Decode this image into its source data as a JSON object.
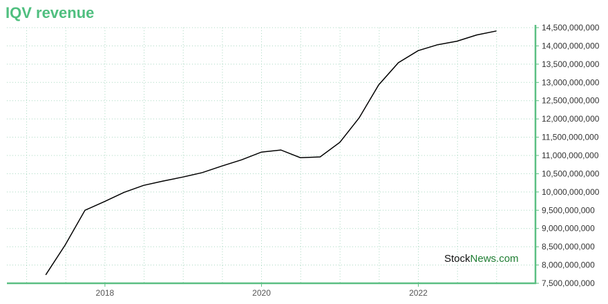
{
  "chart_data": {
    "type": "line",
    "title": "IQV revenue",
    "xlabel": "",
    "ylabel": "",
    "x_ticks": [
      "2018",
      "2020",
      "2022"
    ],
    "y_ticks": [
      "14,500,000,000",
      "14,000,000,000",
      "13,500,000,000",
      "13,000,000,000",
      "12,500,000,000",
      "12,000,000,000",
      "11,500,000,000",
      "11,000,000,000",
      "10,500,000,000",
      "10,000,000,000",
      "9,500,000,000",
      "9,000,000,000",
      "8,500,000,000",
      "8,000,000,000",
      "7,500,000,000"
    ],
    "ylim": [
      7500000000,
      14500000000
    ],
    "xlim": [
      "2016-10-01",
      "2023-07-01"
    ],
    "grid": true,
    "legend": "none",
    "colors": {
      "line": "#000000",
      "axis": "#5bbf82",
      "grid": "#a8d8c0",
      "title": "#4fbf7f"
    },
    "series": [
      {
        "points": [
          {
            "x": "2017-03-31",
            "y": 7730000000
          },
          {
            "x": "2017-06-30",
            "y": 8550000000
          },
          {
            "x": "2017-09-30",
            "y": 9500000000
          },
          {
            "x": "2017-12-31",
            "y": 9740000000
          },
          {
            "x": "2018-03-31",
            "y": 9990000000
          },
          {
            "x": "2018-06-30",
            "y": 10180000000
          },
          {
            "x": "2018-09-30",
            "y": 10300000000
          },
          {
            "x": "2018-12-31",
            "y": 10410000000
          },
          {
            "x": "2019-03-31",
            "y": 10530000000
          },
          {
            "x": "2019-06-30",
            "y": 10710000000
          },
          {
            "x": "2019-09-30",
            "y": 10880000000
          },
          {
            "x": "2019-12-31",
            "y": 11090000000
          },
          {
            "x": "2020-03-31",
            "y": 11150000000
          },
          {
            "x": "2020-06-30",
            "y": 10940000000
          },
          {
            "x": "2020-09-30",
            "y": 10960000000
          },
          {
            "x": "2020-12-31",
            "y": 11360000000
          },
          {
            "x": "2021-03-31",
            "y": 12030000000
          },
          {
            "x": "2021-06-30",
            "y": 12930000000
          },
          {
            "x": "2021-09-30",
            "y": 13540000000
          },
          {
            "x": "2021-12-31",
            "y": 13870000000
          },
          {
            "x": "2022-03-31",
            "y": 14030000000
          },
          {
            "x": "2022-06-30",
            "y": 14130000000
          },
          {
            "x": "2022-09-30",
            "y": 14300000000
          },
          {
            "x": "2022-12-31",
            "y": 14410000000
          }
        ]
      }
    ]
  },
  "watermark": {
    "part1": "Stock",
    "part2": "News.com"
  }
}
